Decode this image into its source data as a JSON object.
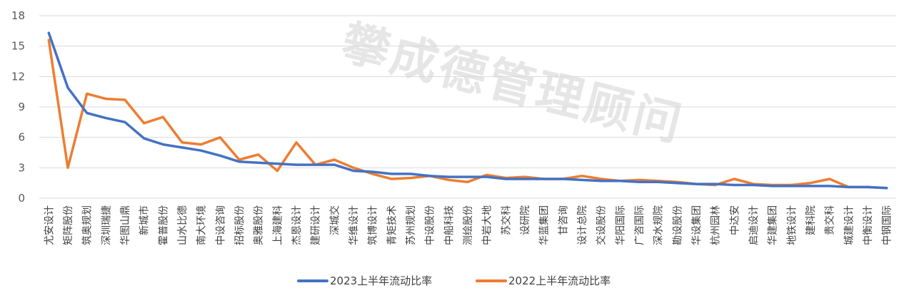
{
  "watermark": "攀成德管理顾问",
  "chart_data": {
    "type": "line",
    "title": "",
    "xlabel": "",
    "ylabel": "",
    "ylim": [
      0,
      18
    ],
    "yticks": [
      0,
      3,
      6,
      9,
      12,
      15,
      18
    ],
    "grid": true,
    "legend_position": "bottom",
    "categories": [
      "尤安设计",
      "矩阵股份",
      "筑奥规划",
      "深圳瑞捷",
      "华图山鼎",
      "新城市",
      "霍普股份",
      "山水比德",
      "南大环境",
      "中设咨询",
      "招标股份",
      "奥雅股份",
      "上海建科",
      "杰恩设计",
      "建研设计",
      "深城交",
      "华维设计",
      "筑博设计",
      "青矩技术",
      "苏州规划",
      "中设股份",
      "中船科技",
      "测绘股份",
      "中岩大地",
      "苏交科",
      "设研院",
      "华蓝集团",
      "甘咨询",
      "设计总院",
      "交设股份",
      "华阳国际",
      "广咨国际",
      "深水规院",
      "勘设股份",
      "华设集团",
      "杭州园林",
      "中达安",
      "启迪设计",
      "华建集团",
      "地铁设计",
      "建科院",
      "贵交科",
      "城建设计",
      "中衡设计",
      "中钢国际"
    ],
    "series": [
      {
        "name": "2023上半年流动比率",
        "color": "#4472c4",
        "values": [
          16.3,
          10.9,
          8.4,
          7.9,
          7.5,
          5.9,
          5.3,
          5.0,
          4.7,
          4.2,
          3.6,
          3.5,
          3.4,
          3.3,
          3.3,
          3.3,
          2.7,
          2.6,
          2.4,
          2.4,
          2.2,
          2.1,
          2.1,
          2.1,
          1.9,
          1.9,
          1.9,
          1.9,
          1.8,
          1.7,
          1.7,
          1.6,
          1.6,
          1.5,
          1.4,
          1.4,
          1.3,
          1.3,
          1.2,
          1.2,
          1.2,
          1.2,
          1.1,
          1.1,
          1.0
        ]
      },
      {
        "name": "2022上半年流动比率",
        "color": "#ed7d31",
        "values": [
          15.6,
          3.0,
          10.3,
          9.8,
          9.7,
          7.4,
          8.0,
          5.5,
          5.3,
          6.0,
          3.8,
          4.3,
          2.7,
          5.5,
          3.3,
          3.8,
          3.0,
          2.4,
          1.9,
          2.0,
          2.2,
          1.8,
          1.6,
          2.3,
          2.0,
          2.1,
          1.9,
          1.9,
          2.2,
          1.9,
          1.7,
          1.8,
          1.7,
          1.6,
          1.4,
          1.3,
          1.9,
          1.4,
          1.3,
          1.3,
          1.5,
          1.9,
          1.1,
          1.1,
          1.0
        ]
      }
    ]
  }
}
